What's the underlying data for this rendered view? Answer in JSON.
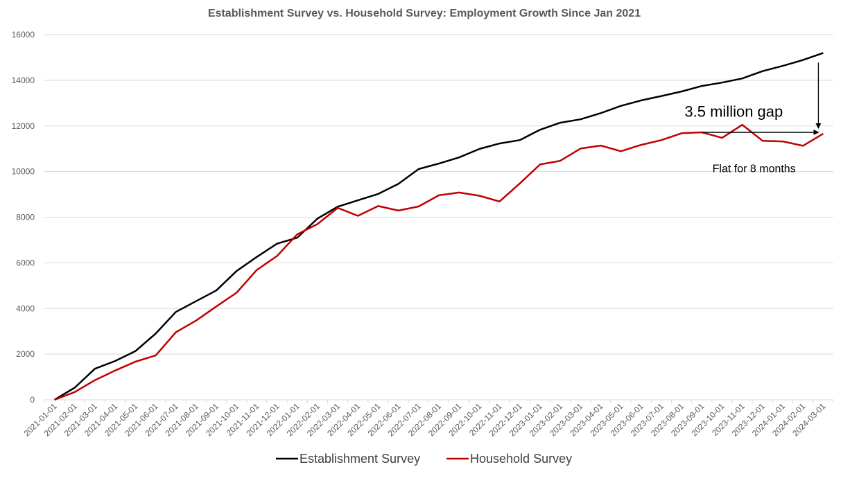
{
  "chart_data": {
    "type": "line",
    "title": "Establishment Survey vs. Household Survey: Employment Growth Since Jan 2021",
    "xlabel": "",
    "ylabel": "",
    "ylim": [
      0,
      16000
    ],
    "yticks": [
      0,
      2000,
      4000,
      6000,
      8000,
      10000,
      12000,
      14000,
      16000
    ],
    "grid": true,
    "legend_position": "bottom",
    "x": [
      "2021-01-01",
      "2021-02-01",
      "2021-03-01",
      "2021-04-01",
      "2021-05-01",
      "2021-06-01",
      "2021-07-01",
      "2021-08-01",
      "2021-09-01",
      "2021-10-01",
      "2021-11-01",
      "2021-12-01",
      "2022-01-01",
      "2022-02-01",
      "2022-03-01",
      "2022-04-01",
      "2022-05-01",
      "2022-06-01",
      "2022-07-01",
      "2022-08-01",
      "2022-09-01",
      "2022-10-01",
      "2022-11-01",
      "2022-12-01",
      "2023-01-01",
      "2023-02-01",
      "2023-03-01",
      "2023-04-01",
      "2023-05-01",
      "2023-06-01",
      "2023-07-01",
      "2023-08-01",
      "2023-09-01",
      "2023-10-01",
      "2023-11-01",
      "2023-12-01",
      "2024-01-01",
      "2024-02-01",
      "2024-03-01"
    ],
    "series": [
      {
        "name": "Establishment Survey",
        "color": "#000000",
        "values": [
          0,
          530,
          1360,
          1700,
          2130,
          2900,
          3850,
          4320,
          4790,
          5640,
          6260,
          6840,
          7100,
          7940,
          8460,
          8740,
          9020,
          9460,
          10110,
          10350,
          10620,
          10990,
          11230,
          11380,
          11830,
          12140,
          12290,
          12560,
          12880,
          13120,
          13310,
          13510,
          13750,
          13900,
          14080,
          14400,
          14630,
          14890,
          15200
        ]
      },
      {
        "name": "Household Survey",
        "color": "#C00000",
        "values": [
          0,
          340,
          860,
          1280,
          1670,
          1940,
          2960,
          3470,
          4090,
          4690,
          5690,
          6300,
          7250,
          7700,
          8410,
          8060,
          8490,
          8290,
          8470,
          8960,
          9080,
          8940,
          8690,
          9480,
          10310,
          10470,
          11010,
          11140,
          10890,
          11170,
          11380,
          11680,
          11720,
          11480,
          12050,
          11350,
          11320,
          11130,
          11660
        ]
      }
    ],
    "annotations": {
      "gap_label": "3.5 million gap",
      "flat_label": "Flat for 8 months"
    }
  }
}
